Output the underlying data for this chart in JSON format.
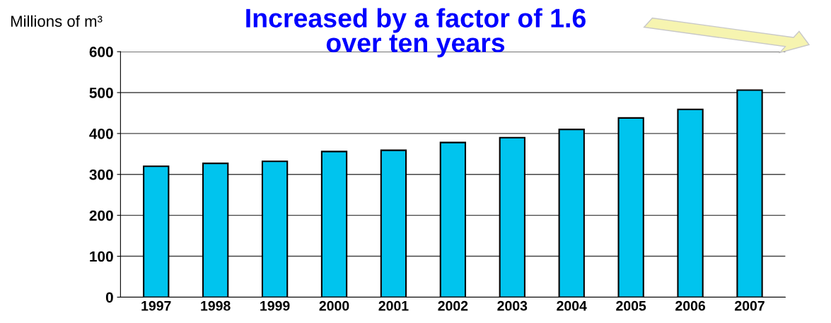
{
  "chart_data": {
    "type": "bar",
    "title": "Increased by a factor of 1.6\nover ten years",
    "ylabel": "Millions of m³",
    "categories": [
      "1997",
      "1998",
      "1999",
      "2000",
      "2001",
      "2002",
      "2003",
      "2004",
      "2005",
      "2006",
      "2007"
    ],
    "values": [
      320,
      327,
      332,
      356,
      359,
      378,
      390,
      410,
      438,
      459,
      506
    ],
    "color": "#00c4ee",
    "ylim": [
      0,
      600
    ],
    "yticks": [
      0,
      100,
      200,
      300,
      400,
      500,
      600
    ],
    "grid": "y"
  }
}
